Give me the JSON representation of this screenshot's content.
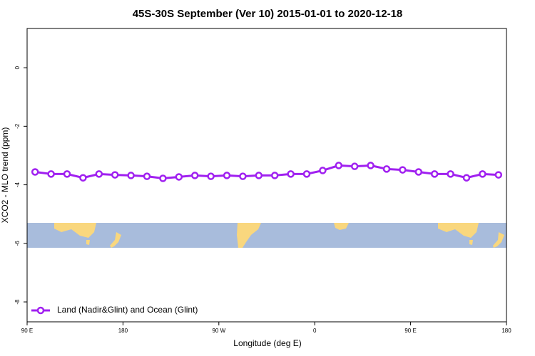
{
  "chart_data": {
    "type": "line",
    "title": "45S-30S September (Ver 10)   2015-01-01 to 2020-12-18",
    "xlabel": "Longitude (deg E)",
    "ylabel": "XCO2 - MLO trend (ppm)",
    "x": [
      97.5,
      112.5,
      127.5,
      142.5,
      157.5,
      172.5,
      187.5,
      202.5,
      217.5,
      232.5,
      247.5,
      262.5,
      277.5,
      292.5,
      307.5,
      322.5,
      337.5,
      352.5,
      367.5,
      382.5,
      397.5,
      412.5,
      427.5,
      442.5,
      457.5,
      472.5,
      487.5,
      502.5,
      517.5,
      532.5
    ],
    "series": [
      {
        "name": "Land (Nadir&Glint) and Ocean (Glint)",
        "color": "#a020f0",
        "values": [
          -3.56,
          -3.63,
          -3.63,
          -3.76,
          -3.63,
          -3.66,
          -3.68,
          -3.71,
          -3.78,
          -3.73,
          -3.68,
          -3.71,
          -3.68,
          -3.71,
          -3.68,
          -3.68,
          -3.63,
          -3.63,
          -3.51,
          -3.34,
          -3.37,
          -3.34,
          -3.46,
          -3.49,
          -3.56,
          -3.63,
          -3.63,
          -3.76,
          -3.63,
          -3.66
        ]
      }
    ],
    "xlim": [
      90,
      540
    ],
    "xticks": [
      {
        "value": 90,
        "label": "90 E"
      },
      180,
      {
        "value": 270,
        "label": "90 W"
      },
      {
        "value": 360,
        "label": "0"
      },
      {
        "value": 450,
        "label": "90 E"
      },
      {
        "value": 540,
        "label": "180"
      }
    ],
    "ylim": [
      -8.68,
      1.34
    ],
    "yticks": [
      0,
      -2,
      -4,
      -6,
      -8
    ],
    "legend": "bottom-left"
  }
}
